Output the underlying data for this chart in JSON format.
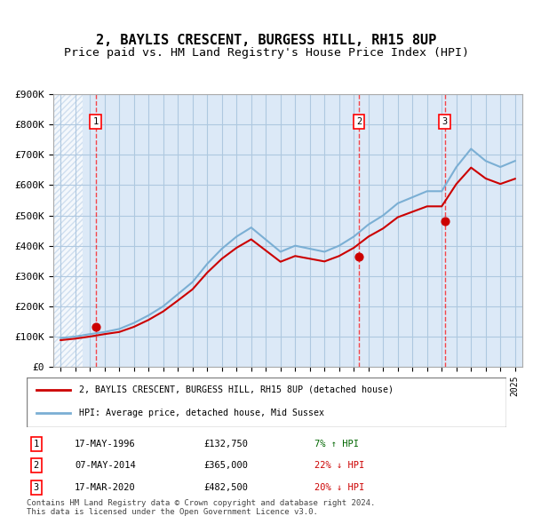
{
  "title": "2, BAYLIS CRESCENT, BURGESS HILL, RH15 8UP",
  "subtitle": "Price paid vs. HM Land Registry's House Price Index (HPI)",
  "ylabel": "",
  "ylim": [
    0,
    900000
  ],
  "yticks": [
    0,
    100000,
    200000,
    300000,
    400000,
    500000,
    600000,
    700000,
    800000,
    900000
  ],
  "ytick_labels": [
    "£0",
    "£100K",
    "£200K",
    "£300K",
    "£400K",
    "£500K",
    "£600K",
    "£700K",
    "£800K",
    "£900K"
  ],
  "background_color": "#dce9f7",
  "hatch_color": "#c0d4ea",
  "grid_color": "#aec8e0",
  "line_color_hpi": "#7bafd4",
  "line_color_price": "#cc0000",
  "sale_marker_color": "#cc0000",
  "title_fontsize": 11,
  "subtitle_fontsize": 9.5,
  "sales": [
    {
      "date": "1996-05-17",
      "price": 132750,
      "label": "1"
    },
    {
      "date": "2014-05-07",
      "price": 365000,
      "label": "2"
    },
    {
      "date": "2020-03-17",
      "price": 482500,
      "label": "3"
    }
  ],
  "sale_labels_info": [
    {
      "num": "1",
      "date": "17-MAY-1996",
      "price": "£132,750",
      "pct": "7%",
      "dir": "↑",
      "rel": "HPI"
    },
    {
      "num": "2",
      "date": "07-MAY-2014",
      "price": "£365,000",
      "pct": "22%",
      "dir": "↓",
      "rel": "HPI"
    },
    {
      "num": "3",
      "date": "17-MAR-2020",
      "price": "£482,500",
      "pct": "20%",
      "dir": "↓",
      "rel": "HPI"
    }
  ],
  "legend_line1": "2, BAYLIS CRESCENT, BURGESS HILL, RH15 8UP (detached house)",
  "legend_line2": "HPI: Average price, detached house, Mid Sussex",
  "footer": "Contains HM Land Registry data © Crown copyright and database right 2024.\nThis data is licensed under the Open Government Licence v3.0.",
  "hpi_years": [
    1994,
    1995,
    1996,
    1997,
    1998,
    1999,
    2000,
    2001,
    2002,
    2003,
    2004,
    2005,
    2006,
    2007,
    2008,
    2009,
    2010,
    2011,
    2012,
    2013,
    2014,
    2015,
    2016,
    2017,
    2018,
    2019,
    2020,
    2021,
    2022,
    2023,
    2024,
    2025
  ],
  "hpi_values": [
    95000,
    100000,
    108000,
    115000,
    125000,
    145000,
    170000,
    200000,
    240000,
    280000,
    340000,
    390000,
    430000,
    460000,
    420000,
    380000,
    400000,
    390000,
    380000,
    400000,
    430000,
    470000,
    500000,
    540000,
    560000,
    580000,
    580000,
    660000,
    720000,
    680000,
    660000,
    680000
  ],
  "price_years": [
    1994,
    1995,
    1996,
    1997,
    1998,
    1999,
    2000,
    2001,
    2002,
    2003,
    2004,
    2005,
    2006,
    2007,
    2008,
    2009,
    2010,
    2011,
    2012,
    2013,
    2014,
    2015,
    2016,
    2017,
    2018,
    2019,
    2020,
    2021,
    2022,
    2023,
    2024,
    2025
  ],
  "price_values": [
    88000,
    93000,
    100000,
    108000,
    115000,
    132000,
    155000,
    183000,
    219000,
    256000,
    311000,
    357000,
    393000,
    421000,
    384000,
    347000,
    366000,
    357000,
    348000,
    366000,
    393000,
    430000,
    457000,
    494000,
    512000,
    530000,
    530000,
    604000,
    658000,
    622000,
    604000,
    621000
  ],
  "xlim_left": 1993.5,
  "xlim_right": 2025.5
}
